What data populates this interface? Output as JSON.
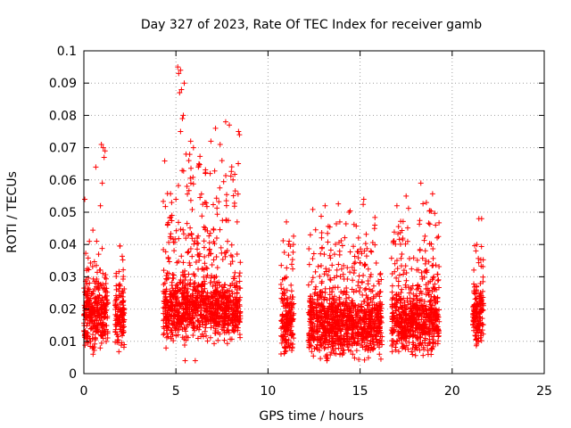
{
  "chart_data": {
    "type": "scatter",
    "title": "Day 327 of 2023, Rate Of TEC Index for receiver gamb",
    "xlabel": "GPS time / hours",
    "ylabel": "ROTI / TECUs",
    "xlim": [
      0,
      25
    ],
    "ylim": [
      0,
      0.1
    ],
    "x_ticks": [
      "0",
      "5",
      "10",
      "15",
      "20",
      "25"
    ],
    "y_ticks": [
      "0",
      "0.01",
      "0.02",
      "0.03",
      "0.04",
      "0.05",
      "0.06",
      "0.07",
      "0.08",
      "0.09",
      "0.1"
    ],
    "grid": true,
    "marker": "+",
    "color": "#ff0000",
    "clusters": [
      {
        "x_range": [
          0.0,
          1.3
        ],
        "y_range": [
          0.005,
          0.045
        ],
        "y_center": 0.018
      },
      {
        "x_range": [
          1.7,
          2.2
        ],
        "y_range": [
          0.006,
          0.042
        ],
        "y_center": 0.017
      },
      {
        "x_range": [
          4.3,
          8.5
        ],
        "y_range": [
          0.004,
          0.075
        ],
        "y_center": 0.02
      },
      {
        "x_range": [
          10.7,
          11.4
        ],
        "y_range": [
          0.006,
          0.047
        ],
        "y_center": 0.016
      },
      {
        "x_range": [
          12.2,
          16.2
        ],
        "y_range": [
          0.004,
          0.053
        ],
        "y_center": 0.015
      },
      {
        "x_range": [
          16.7,
          19.3
        ],
        "y_range": [
          0.005,
          0.058
        ],
        "y_center": 0.016
      },
      {
        "x_range": [
          21.1,
          21.7
        ],
        "y_range": [
          0.007,
          0.048
        ],
        "y_center": 0.018
      }
    ],
    "points": [
      [
        0.05,
        0.054
      ],
      [
        0.3,
        0.041
      ],
      [
        0.65,
        0.064
      ],
      [
        0.9,
        0.052
      ],
      [
        1.0,
        0.059
      ],
      [
        1.05,
        0.07
      ],
      [
        1.15,
        0.069
      ],
      [
        1.1,
        0.067
      ],
      [
        0.95,
        0.071
      ],
      [
        5.1,
        0.095
      ],
      [
        5.15,
        0.093
      ],
      [
        5.25,
        0.094
      ],
      [
        5.45,
        0.09
      ],
      [
        5.2,
        0.087
      ],
      [
        5.3,
        0.088
      ],
      [
        5.35,
        0.079
      ],
      [
        5.4,
        0.08
      ],
      [
        5.25,
        0.075
      ],
      [
        5.55,
        0.068
      ],
      [
        5.7,
        0.066
      ],
      [
        5.8,
        0.072
      ],
      [
        5.95,
        0.07
      ],
      [
        6.25,
        0.065
      ],
      [
        6.9,
        0.072
      ],
      [
        7.15,
        0.076
      ],
      [
        7.4,
        0.071
      ],
      [
        7.7,
        0.078
      ],
      [
        7.9,
        0.077
      ],
      [
        8.4,
        0.075
      ],
      [
        8.45,
        0.074
      ],
      [
        8.1,
        0.06
      ],
      [
        7.5,
        0.066
      ],
      [
        5.0,
        0.054
      ],
      [
        5.6,
        0.058
      ],
      [
        6.6,
        0.062
      ],
      [
        11.0,
        0.047
      ],
      [
        12.3,
        0.043
      ],
      [
        13.1,
        0.052
      ],
      [
        13.9,
        0.047
      ],
      [
        14.4,
        0.05
      ],
      [
        15.2,
        0.054
      ],
      [
        15.8,
        0.046
      ],
      [
        17.0,
        0.052
      ],
      [
        17.5,
        0.055
      ],
      [
        18.3,
        0.059
      ],
      [
        18.6,
        0.053
      ],
      [
        19.1,
        0.046
      ],
      [
        21.45,
        0.048
      ],
      [
        21.6,
        0.048
      ],
      [
        0.5,
        0.006
      ],
      [
        5.5,
        0.004
      ],
      [
        6.05,
        0.004
      ],
      [
        14.6,
        0.006
      ],
      [
        13.2,
        0.004
      ]
    ]
  }
}
